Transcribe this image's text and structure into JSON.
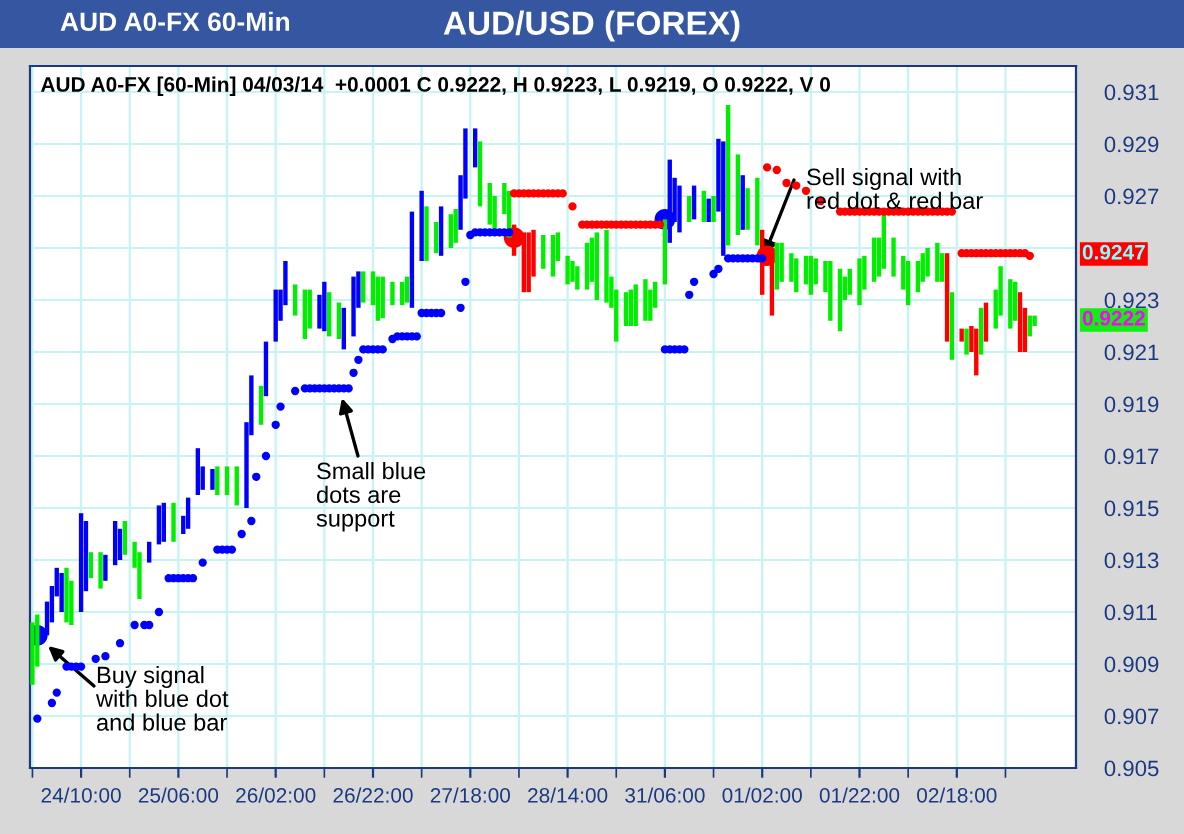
{
  "chart_data": {
    "type": "bar",
    "title": "AUD/USD (FOREX)",
    "subtitle": "AUD A0-FX 60-Min",
    "annotations": [
      "AUD A0-FX [60-Min] 04/03/14  +0.0001 C 0.9222, H 0.9223, L 0.9219, O 0.9222, V 0",
      "Buy signal\nwith blue dot\nand blue bar",
      "Small blue\ndots are\nsupport",
      {
        "text": "Sell signal with\nred dot & red bar",
        "y": 0.9247
      },
      "0.9247",
      "0.9222"
    ],
    "categories": [
      null,
      null,
      null,
      null,
      null,
      null,
      null,
      null,
      null,
      null,
      "24/10:00",
      null,
      null,
      null,
      null,
      null,
      null,
      null,
      null,
      null,
      null,
      null,
      null,
      null,
      null,
      null,
      null,
      null,
      null,
      null,
      "25/06:00",
      null,
      null,
      null,
      null,
      null,
      null,
      null,
      null,
      null,
      null,
      null,
      null,
      null,
      null,
      null,
      null,
      null,
      null,
      null,
      "26/02:00",
      null,
      null,
      null,
      null,
      null,
      null,
      null,
      null,
      null,
      null,
      null,
      null,
      null,
      null,
      null,
      null,
      null,
      null,
      null,
      "26/22:00",
      null,
      null,
      null,
      null,
      null,
      null,
      null,
      null,
      null,
      null,
      null,
      null,
      null,
      null,
      null,
      null,
      null,
      null,
      null,
      "27/18:00",
      null,
      null,
      null,
      null,
      null,
      null,
      null,
      null,
      null,
      null,
      null,
      null,
      null,
      null,
      null,
      null,
      null,
      null,
      null,
      "28/14:00",
      null,
      null,
      null,
      null,
      null,
      null,
      null,
      null,
      null,
      null,
      null,
      null,
      null,
      null,
      null,
      null,
      null,
      null,
      null,
      "31/06:00",
      null,
      null,
      null,
      null,
      null,
      null,
      null,
      null,
      null,
      null,
      null,
      null,
      null,
      null,
      null,
      null,
      null,
      null,
      null,
      "01/02:00",
      null,
      null,
      null,
      null,
      null,
      null,
      null,
      null,
      null,
      null,
      null,
      null,
      null,
      null,
      null,
      null,
      null,
      null,
      null,
      "01/22:00",
      null,
      null,
      null,
      null,
      null,
      null,
      null,
      null,
      null,
      null,
      null,
      null,
      null,
      null,
      null,
      null,
      null,
      null,
      null,
      "02/18:00",
      null,
      null,
      null,
      null,
      null,
      null,
      null,
      null,
      null,
      null,
      null,
      null,
      null,
      null,
      null,
      null,
      null,
      null,
      null,
      null,
      null,
      null,
      null,
      null
    ],
    "ylim": [
      0.905,
      0.932
    ],
    "yticks": [
      0.905,
      0.907,
      0.909,
      0.911,
      0.913,
      0.915,
      0.917,
      0.919,
      0.921,
      0.923,
      {
        "value": 0.925,
        "label": null
      },
      0.927,
      0.929,
      0.931
    ],
    "grid": true,
    "legend": false,
    "series": [
      {
        "base": [
          0.9082,
          0.9089,
          null,
          0.9101,
          0.9106,
          0.9116,
          0.911,
          0.9106,
          0.9105,
          null,
          0.911,
          0.9118,
          0.9123,
          null,
          0.9119,
          0.9122,
          null,
          0.9128,
          0.913,
          0.9132,
          null,
          0.9127,
          0.9115,
          null,
          0.9129,
          null,
          0.9136,
          0.9137,
          null,
          0.9137,
          null,
          0.914,
          0.9142,
          null,
          0.9155,
          0.9157,
          null,
          0.9157,
          0.9155,
          null,
          0.9155,
          null,
          0.9151,
          null,
          0.915,
          0.9178,
          null,
          0.9182,
          0.9193,
          null,
          0.9214,
          0.9222,
          0.9228,
          null,
          0.9224,
          null,
          0.9215,
          0.9219,
          null,
          0.9219,
          0.9218,
          0.9216,
          null,
          0.9215,
          0.9211,
          null,
          0.9216,
          0.9227,
          0.9229,
          null,
          0.9228,
          0.9222,
          0.9223,
          null,
          0.9228,
          null,
          0.9228,
          0.9229,
          0.9227,
          null,
          0.9245,
          0.9245,
          null,
          0.9248,
          0.9247,
          null,
          0.925,
          0.9252,
          0.9257,
          0.9269,
          null,
          0.9281,
          0.9266,
          null,
          0.9259,
          0.9255,
          null,
          0.9263,
          0.9254,
          0.9247,
          null,
          0.9233,
          0.9233,
          0.9239,
          null,
          0.9242,
          null,
          0.9239,
          0.9245,
          null,
          0.9236,
          0.9237,
          0.9234,
          null,
          0.9234,
          0.9237,
          0.923,
          null,
          0.9229,
          0.9227,
          0.9214,
          null,
          0.922,
          0.922,
          0.922,
          null,
          0.9222,
          0.9222,
          0.9227,
          null,
          0.9236,
          0.9252,
          0.926,
          0.9256,
          null,
          0.926,
          0.9261,
          null,
          0.926,
          0.926,
          0.926,
          0.9264,
          0.9247,
          0.9251,
          null,
          0.9255,
          0.9257,
          0.9257,
          null,
          0.9251,
          0.9232,
          null,
          0.9224,
          0.9234,
          0.9237,
          null,
          0.9237,
          0.9233,
          null,
          0.9236,
          0.9232,
          0.9236,
          null,
          0.9233,
          0.9222,
          null,
          0.9218,
          0.923,
          0.9232,
          null,
          0.9228,
          0.9234,
          null,
          0.9237,
          0.9239,
          0.9242,
          null,
          0.9239,
          null,
          0.9234,
          0.9228,
          null,
          0.9233,
          0.9237,
          0.9239,
          null,
          0.9237,
          0.9237,
          0.9214,
          0.9207,
          null,
          0.9214,
          0.9209,
          0.921,
          0.9201,
          0.9209,
          0.9214,
          null,
          0.9219,
          0.9224,
          null,
          0.9219,
          0.9222,
          0.921,
          0.921,
          0.9216,
          0.922,
          null,
          null,
          null,
          null,
          null,
          null,
          null,
          null
        ],
        "values": [
          0.0024,
          0.002,
          null,
          0.0013,
          0.0014,
          0.0011,
          0.0015,
          0.0021,
          0.0017,
          null,
          0.0038,
          0.0027,
          0.001,
          null,
          0.0014,
          0.001,
          null,
          0.0017,
          0.0012,
          0.0013,
          null,
          0.001,
          0.0018,
          null,
          0.0008,
          null,
          0.0015,
          0.0015,
          null,
          0.0015,
          null,
          0.0007,
          0.0012,
          null,
          0.0018,
          0.0009,
          null,
          0.0008,
          0.0011,
          null,
          0.0011,
          null,
          0.0015,
          null,
          0.0033,
          0.0023,
          null,
          0.0015,
          0.0021,
          null,
          0.002,
          0.0012,
          0.0017,
          null,
          0.0012,
          null,
          0.0019,
          0.0015,
          null,
          0.0013,
          0.0019,
          0.0017,
          null,
          0.0014,
          0.0016,
          null,
          0.0023,
          0.0014,
          0.0012,
          null,
          0.0013,
          0.0017,
          0.0016,
          null,
          0.0009,
          null,
          0.0009,
          0.001,
          0.0037,
          null,
          0.0027,
          0.0021,
          null,
          0.0012,
          0.0019,
          null,
          0.0013,
          0.0013,
          0.0021,
          0.0027,
          null,
          0.0015,
          0.0025,
          null,
          0.0016,
          0.0015,
          null,
          0.0012,
          0.0018,
          0.0012,
          null,
          0.0023,
          0.0023,
          0.0018,
          null,
          0.0013,
          null,
          0.0016,
          0.0011,
          null,
          0.0011,
          0.0008,
          0.0009,
          null,
          0.0018,
          0.0017,
          0.0026,
          null,
          0.0028,
          0.0012,
          0.002,
          null,
          0.0013,
          0.0014,
          0.0016,
          null,
          0.0016,
          0.0012,
          0.001,
          null,
          0.0025,
          0.0032,
          0.0017,
          0.0018,
          null,
          0.001,
          0.0013,
          null,
          0.0012,
          0.0009,
          0.001,
          0.0028,
          0.0044,
          0.0054,
          null,
          0.0031,
          0.0021,
          0.0016,
          null,
          0.0026,
          0.0025,
          null,
          0.0026,
          0.0018,
          0.0015,
          null,
          0.0011,
          0.0013,
          null,
          0.0011,
          0.0015,
          0.001,
          null,
          0.0012,
          0.0023,
          null,
          0.0024,
          0.0009,
          0.001,
          null,
          0.0018,
          0.0013,
          null,
          0.0017,
          0.0015,
          0.0021,
          null,
          0.0015,
          null,
          0.0013,
          0.0017,
          null,
          0.0012,
          0.0011,
          0.0011,
          null,
          0.0015,
          0.0011,
          0.0034,
          0.0026,
          null,
          0.0005,
          0.001,
          0.001,
          0.0018,
          0.0018,
          0.0015,
          null,
          0.0015,
          0.0019,
          null,
          0.0019,
          0.0015,
          0.0023,
          0.0017,
          0.0008,
          0.0004,
          null,
          null,
          null,
          null,
          null,
          null,
          null,
          null
        ],
        "colors": [
          "#00ee00",
          "#00ee00",
          null,
          "#0000ff",
          "#0000ff",
          "#0000ff",
          "#0000ff",
          "#00ee00",
          "#00ee00",
          null,
          "#0000ff",
          "#0000ff",
          "#00ee00",
          null,
          "#00ee00",
          "#0000ff",
          null,
          "#0000ff",
          "#0000ff",
          "#00ee00",
          null,
          "#00ee00",
          "#00ee00",
          null,
          "#0000ff",
          null,
          "#0000ff",
          "#0000ff",
          null,
          "#00ee00",
          null,
          "#0000ff",
          "#0000ff",
          null,
          "#0000ff",
          "#0000ff",
          null,
          "#0000ff",
          "#00ee00",
          null,
          "#00ee00",
          null,
          "#00ee00",
          null,
          "#0000ff",
          "#0000ff",
          null,
          "#00ee00",
          "#0000ff",
          null,
          "#0000ff",
          "#0000ff",
          "#0000ff",
          null,
          "#00ee00",
          null,
          "#00ee00",
          "#00ee00",
          null,
          "#0000ff",
          "#0000ff",
          "#00ee00",
          null,
          "#00ee00",
          "#0000ff",
          null,
          "#0000ff",
          "#0000ff",
          "#00ee00",
          null,
          "#00ee00",
          "#00ee00",
          "#00ee00",
          null,
          "#00ee00",
          null,
          "#00ee00",
          "#00ee00",
          "#0000ff",
          null,
          "#0000ff",
          "#00ee00",
          null,
          "#00ee00",
          "#0000ff",
          null,
          "#00ee00",
          "#00ee00",
          "#0000ff",
          "#0000ff",
          null,
          "#0000ff",
          "#00ee00",
          null,
          "#00ee00",
          "#00ee00",
          null,
          "#00ee00",
          "#00ee00",
          "#ff0000",
          null,
          "#ff0000",
          "#ff0000",
          "#ff0000",
          null,
          "#00ee00",
          null,
          "#00ee00",
          "#00ee00",
          null,
          "#00ee00",
          "#00ee00",
          "#00ee00",
          null,
          "#00ee00",
          "#00ee00",
          "#00ee00",
          null,
          "#00ee00",
          "#00ee00",
          "#00ee00",
          null,
          "#00ee00",
          "#00ee00",
          "#00ee00",
          null,
          "#00ee00",
          "#00ee00",
          "#00ee00",
          null,
          "#00ee00",
          "#0000ff",
          "#0000ff",
          "#0000ff",
          null,
          "#00ee00",
          "#0000ff",
          null,
          "#00ee00",
          "#0000ff",
          "#00ee00",
          "#0000ff",
          "#0000ff",
          "#00ee00",
          null,
          "#00ee00",
          "#0000ff",
          "#00ee00",
          null,
          "#00ee00",
          "#ff0000",
          null,
          "#ff0000",
          "#00ee00",
          "#00ee00",
          null,
          "#00ee00",
          "#00ee00",
          null,
          "#00ee00",
          "#00ee00",
          "#00ee00",
          null,
          "#00ee00",
          "#00ee00",
          null,
          "#00ee00",
          "#00ee00",
          "#00ee00",
          null,
          "#00ee00",
          "#00ee00",
          null,
          "#00ee00",
          "#00ee00",
          "#00ee00",
          null,
          "#00ee00",
          null,
          "#00ee00",
          "#00ee00",
          null,
          "#00ee00",
          "#00ee00",
          "#00ee00",
          null,
          "#00ee00",
          "#00ee00",
          "#ff0000",
          "#00ee00",
          null,
          "#ff0000",
          "#00ee00",
          "#ff0000",
          "#ff0000",
          "#00ee00",
          "#ff0000",
          null,
          "#00ee00",
          "#00ee00",
          null,
          "#00ee00",
          "#00ee00",
          "#ff0000",
          "#ff0000",
          "#00ee00",
          "#00ee00",
          null,
          null,
          null,
          null,
          null,
          null,
          null,
          null
        ]
      },
      {
        "type": "scatter",
        "color": "#0000ff",
        "values": [
          null,
          0.9069,
          null,
          null,
          0.9075,
          0.9079,
          null,
          0.9089,
          0.9089,
          0.9089,
          0.9089,
          null,
          null,
          0.9092,
          null,
          0.9093,
          null,
          null,
          0.9098,
          null,
          null,
          0.9105,
          null,
          0.9105,
          0.9105,
          null,
          0.911,
          null,
          0.9123,
          0.9123,
          0.9123,
          0.9123,
          0.9123,
          0.9123,
          null,
          0.9129,
          null,
          null,
          0.9134,
          0.9134,
          0.9134,
          0.9134,
          null,
          0.914,
          null,
          0.9145,
          0.9162,
          null,
          0.917,
          null,
          0.9182,
          0.9189,
          null,
          null,
          0.9195,
          null,
          0.9196,
          0.9196,
          0.9196,
          0.9196,
          0.9196,
          0.9196,
          0.9196,
          0.9196,
          0.9196,
          0.9196,
          0.9202,
          0.9207,
          0.9211,
          0.9211,
          0.9211,
          0.9211,
          0.9211,
          null,
          0.9215,
          0.9216,
          0.9216,
          0.9216,
          0.9216,
          0.9216,
          0.9225,
          0.9225,
          0.9225,
          0.9225,
          0.9225,
          null,
          null,
          null,
          0.9227,
          0.9237,
          0.9255,
          0.9256,
          0.9256,
          0.9256,
          0.9256,
          0.9256,
          0.9256,
          0.9256,
          0.9256,
          null,
          null,
          null,
          null,
          null,
          null,
          null,
          null,
          null,
          null,
          null,
          null,
          null,
          null,
          null,
          null,
          null,
          null,
          null,
          null,
          null,
          null,
          null,
          null,
          null,
          null,
          null,
          null,
          null,
          null,
          null,
          0.9211,
          0.9211,
          0.9211,
          0.9211,
          0.9211,
          0.9232,
          0.9237,
          null,
          null,
          null,
          0.924,
          0.9242,
          null,
          0.9246,
          0.9246,
          0.9246,
          0.9246,
          0.9246,
          0.9246,
          0.9246,
          0.9246,
          null,
          null,
          null,
          null,
          null,
          null,
          null,
          null,
          null,
          null,
          null,
          null,
          null,
          null,
          null,
          null,
          null,
          null,
          null,
          null,
          null,
          null,
          null,
          null,
          null,
          null,
          null,
          null,
          null,
          null,
          null,
          null,
          null,
          null,
          null,
          null,
          null,
          null,
          null,
          null,
          null,
          null,
          null,
          null,
          null,
          null,
          null,
          null,
          null,
          null,
          null,
          null,
          null,
          null,
          null,
          null,
          null,
          null,
          null,
          null,
          null,
          null,
          null,
          null
        ]
      },
      {
        "type": "scatter",
        "color": "#ff0000",
        "values": [
          null,
          null,
          null,
          null,
          null,
          null,
          null,
          null,
          null,
          null,
          null,
          null,
          null,
          null,
          null,
          null,
          null,
          null,
          null,
          null,
          null,
          null,
          null,
          null,
          null,
          null,
          null,
          null,
          null,
          null,
          null,
          null,
          null,
          null,
          null,
          null,
          null,
          null,
          null,
          null,
          null,
          null,
          null,
          null,
          null,
          null,
          null,
          null,
          null,
          null,
          null,
          null,
          null,
          null,
          null,
          null,
          null,
          null,
          null,
          null,
          null,
          null,
          null,
          null,
          null,
          null,
          null,
          null,
          null,
          null,
          null,
          null,
          null,
          null,
          null,
          null,
          null,
          null,
          null,
          null,
          null,
          null,
          null,
          null,
          null,
          null,
          null,
          null,
          null,
          null,
          null,
          null,
          null,
          null,
          null,
          null,
          null,
          null,
          null,
          0.9271,
          0.9271,
          0.9271,
          0.9271,
          0.9271,
          0.9271,
          0.9271,
          0.9271,
          0.9271,
          0.9271,
          0.9271,
          null,
          0.9266,
          null,
          0.9259,
          0.9259,
          0.9259,
          0.9259,
          0.9259,
          0.9259,
          0.9259,
          0.9259,
          0.9259,
          0.9259,
          0.9259,
          0.9259,
          0.9259,
          0.9259,
          0.9259,
          0.9259,
          0.9259,
          null,
          null,
          null,
          null,
          null,
          null,
          null,
          null,
          null,
          null,
          null,
          null,
          null,
          null,
          null,
          null,
          null,
          null,
          null,
          null,
          null,
          0.9281,
          null,
          0.928,
          null,
          0.9275,
          null,
          0.9274,
          null,
          0.9272,
          null,
          null,
          0.9268,
          null,
          null,
          null,
          0.9264,
          0.9264,
          0.9264,
          0.9264,
          0.9264,
          0.9264,
          0.9264,
          0.9264,
          0.9264,
          0.9264,
          0.9264,
          0.9264,
          0.9264,
          0.9264,
          0.9264,
          0.9264,
          0.9264,
          0.9264,
          0.9264,
          0.9264,
          0.9264,
          0.9264,
          0.9264,
          0.9264,
          null,
          0.9248,
          0.9248,
          0.9248,
          0.9248,
          0.9248,
          0.9248,
          0.9248,
          0.9248,
          0.9248,
          0.9248,
          0.9248,
          0.9248,
          0.9248,
          0.9248,
          0.9247,
          null,
          null,
          null,
          null,
          null,
          null,
          null,
          null,
          null
        ]
      },
      {
        "type": "bubble",
        "values": [
          null,
          0.9101,
          null,
          null,
          null,
          null,
          null,
          null,
          null,
          null,
          null,
          null,
          null,
          null,
          null,
          null,
          null,
          null,
          null,
          null,
          null,
          null,
          null,
          null,
          null,
          null,
          null,
          null,
          null,
          null,
          null,
          null,
          null,
          null,
          null,
          null,
          null,
          null,
          null,
          null,
          null,
          null,
          null,
          null,
          null,
          null,
          null,
          null,
          null,
          null,
          null,
          null,
          null,
          null,
          null,
          null,
          null,
          null,
          null,
          null,
          null,
          null,
          null,
          null,
          null,
          null,
          null,
          null,
          null,
          null,
          null,
          null,
          null,
          null,
          null,
          null,
          null,
          null,
          null,
          null,
          null,
          null,
          null,
          null,
          null,
          null,
          null,
          null,
          null,
          null,
          null,
          null,
          null,
          null,
          null,
          null,
          null,
          null,
          null,
          0.9254,
          null,
          null,
          null,
          null,
          null,
          null,
          null,
          null,
          null,
          null,
          null,
          null,
          null,
          null,
          null,
          null,
          null,
          null,
          null,
          null,
          null,
          null,
          null,
          null,
          null,
          null,
          null,
          null,
          null,
          null,
          0.9261,
          null,
          null,
          null,
          null,
          null,
          null,
          null,
          null,
          null,
          null,
          null,
          null,
          null,
          null,
          null,
          null,
          null,
          null,
          null,
          null,
          0.9247,
          null,
          null,
          null,
          null,
          null,
          null,
          null,
          null,
          null,
          null,
          null,
          null,
          null,
          null,
          null,
          null,
          null,
          null,
          null,
          null,
          null,
          null,
          null,
          null,
          null,
          null,
          null,
          null,
          null,
          null,
          null,
          null,
          null,
          null,
          null,
          null,
          null,
          null,
          null,
          null,
          null,
          null,
          null,
          null,
          null,
          null,
          null,
          null,
          null,
          null,
          null,
          null,
          null,
          null,
          null,
          null,
          null,
          null,
          null,
          null,
          null,
          null,
          null
        ],
        "sizes": [
          null,
          1,
          null,
          null,
          null,
          null,
          null,
          null,
          null,
          null,
          null,
          null,
          null,
          null,
          null,
          null,
          null,
          null,
          null,
          null,
          null,
          null,
          null,
          null,
          null,
          null,
          null,
          null,
          null,
          null,
          null,
          null,
          null,
          null,
          null,
          null,
          null,
          null,
          null,
          null,
          null,
          null,
          null,
          null,
          null,
          null,
          null,
          null,
          null,
          null,
          null,
          null,
          null,
          null,
          null,
          null,
          null,
          null,
          null,
          null,
          null,
          null,
          null,
          null,
          null,
          null,
          null,
          null,
          null,
          null,
          null,
          null,
          null,
          null,
          null,
          null,
          null,
          null,
          null,
          null,
          null,
          null,
          null,
          null,
          null,
          null,
          null,
          null,
          null,
          null,
          null,
          null,
          null,
          null,
          null,
          null,
          null,
          null,
          null,
          1,
          null,
          null,
          null,
          null,
          null,
          null,
          null,
          null,
          null,
          null,
          null,
          null,
          null,
          null,
          null,
          null,
          null,
          null,
          null,
          null,
          null,
          null,
          null,
          null,
          null,
          null,
          null,
          null,
          null,
          null,
          1,
          null,
          null,
          null,
          null,
          null,
          null,
          null,
          null,
          null,
          null,
          null,
          null,
          null,
          null,
          null,
          null,
          null,
          null,
          null,
          null,
          1,
          null,
          null,
          null,
          null,
          null,
          null,
          null,
          null,
          null,
          null,
          null,
          null,
          null,
          null,
          null,
          null,
          null,
          null,
          null,
          null,
          null,
          null,
          null,
          null,
          null,
          null,
          null,
          null,
          null,
          null,
          null,
          null,
          null,
          null,
          null,
          null,
          null,
          null,
          null,
          null,
          null,
          null,
          null,
          null,
          null,
          null,
          null,
          null,
          null,
          null,
          null,
          null,
          null,
          null,
          null,
          null,
          null,
          null,
          null,
          null,
          null,
          null,
          null
        ],
        "colors": [
          null,
          "#0000ff",
          null,
          null,
          null,
          null,
          null,
          null,
          null,
          null,
          null,
          null,
          null,
          null,
          null,
          null,
          null,
          null,
          null,
          null,
          null,
          null,
          null,
          null,
          null,
          null,
          null,
          null,
          null,
          null,
          null,
          null,
          null,
          null,
          null,
          null,
          null,
          null,
          null,
          null,
          null,
          null,
          null,
          null,
          null,
          null,
          null,
          null,
          null,
          null,
          null,
          null,
          null,
          null,
          null,
          null,
          null,
          null,
          null,
          null,
          null,
          null,
          null,
          null,
          null,
          null,
          null,
          null,
          null,
          null,
          null,
          null,
          null,
          null,
          null,
          null,
          null,
          null,
          null,
          null,
          null,
          null,
          null,
          null,
          null,
          null,
          null,
          null,
          null,
          null,
          null,
          null,
          null,
          null,
          null,
          null,
          null,
          null,
          null,
          "#ff0000",
          null,
          null,
          null,
          null,
          null,
          null,
          null,
          null,
          null,
          null,
          null,
          null,
          null,
          null,
          null,
          null,
          null,
          null,
          null,
          null,
          null,
          null,
          null,
          null,
          null,
          null,
          null,
          null,
          null,
          null,
          "#0000ff",
          null,
          null,
          null,
          null,
          null,
          null,
          null,
          null,
          null,
          null,
          null,
          null,
          null,
          null,
          null,
          null,
          null,
          null,
          null,
          null,
          "#ff0000",
          null,
          null,
          null,
          null,
          null,
          null,
          null,
          null,
          null,
          null,
          null,
          null,
          null,
          null,
          null,
          null,
          null,
          null,
          null,
          null,
          null,
          null,
          null,
          null,
          null,
          null,
          null,
          null,
          null,
          null,
          null,
          null,
          null,
          null,
          null,
          null,
          null,
          null,
          null,
          null,
          null,
          null,
          null,
          null,
          null,
          null,
          null,
          null,
          null,
          null,
          null,
          null,
          null,
          null,
          null,
          null,
          null,
          null,
          null,
          null,
          null,
          null,
          null
        ]
      }
    ]
  }
}
